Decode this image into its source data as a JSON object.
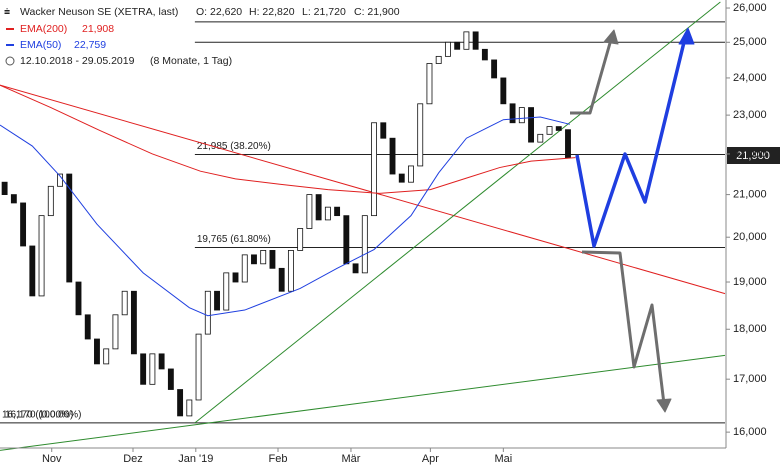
{
  "chart_data": {
    "type": "candlestick",
    "title": "Wacker Neuson SE (XETRA, last)",
    "ohlc_text": {
      "O": "O: 22,620",
      "H": "H: 22,820",
      "L": "L: 21,720",
      "C": "C: 21,900"
    },
    "period": "12.10.2018 - 29.05.2019",
    "period_note": "(8 Monate, 1 Tag)",
    "last_price_label": "21,900",
    "log_scale": true,
    "xlim": [
      -0.5,
      78
    ],
    "ylim": [
      15730,
      26240
    ],
    "xticks": [
      {
        "value": 5.1,
        "label": "Nov"
      },
      {
        "value": 13.9,
        "label": "Dez"
      },
      {
        "value": 20.7,
        "label": "Jan '19"
      },
      {
        "value": 29.6,
        "label": "Feb"
      },
      {
        "value": 37.5,
        "label": "Mär"
      },
      {
        "value": 46.1,
        "label": "Apr"
      },
      {
        "value": 54.0,
        "label": "Mai"
      }
    ],
    "yticks": [
      {
        "value": 16000,
        "label": "16,000"
      },
      {
        "value": 17000,
        "label": "17,000"
      },
      {
        "value": 18000,
        "label": "18,000"
      },
      {
        "value": 19000,
        "label": "19,000"
      },
      {
        "value": 20000,
        "label": "20,000"
      },
      {
        "value": 21000,
        "label": "21,000"
      },
      {
        "value": 22000,
        "label": "22,000"
      },
      {
        "value": 23000,
        "label": "23,000"
      },
      {
        "value": 24000,
        "label": "24,000"
      },
      {
        "value": 25000,
        "label": "25,000"
      },
      {
        "value": 26000,
        "label": "26,000"
      }
    ],
    "candles": {
      "open": [
        21300,
        21000,
        20800,
        19800,
        18700,
        20500,
        21200,
        21500,
        19000,
        18300,
        17800,
        17300,
        17600,
        18300,
        18800,
        17500,
        16900,
        17500,
        17200,
        16800,
        16300,
        16600,
        17900,
        18800,
        18400,
        19200,
        19000,
        19600,
        19400,
        19700,
        19300,
        18800,
        19700,
        20200,
        21000,
        20400,
        20700,
        20500,
        19400,
        19200,
        20500,
        22800,
        22400,
        21500,
        21300,
        21700,
        23300,
        24400,
        24600,
        25000,
        24800,
        25300,
        24800,
        24500,
        24000,
        23300,
        22800,
        23200,
        22300,
        22500,
        22700,
        22620
      ],
      "close": [
        21000,
        20800,
        19800,
        18700,
        20500,
        21200,
        21500,
        19000,
        18300,
        17800,
        17300,
        17600,
        18300,
        18800,
        17500,
        16900,
        17500,
        17200,
        16800,
        16300,
        16600,
        17900,
        18800,
        18400,
        19200,
        19000,
        19600,
        19400,
        19700,
        19300,
        18800,
        19700,
        20200,
        21000,
        20400,
        20700,
        20500,
        19400,
        19200,
        20500,
        22800,
        22400,
        21500,
        21300,
        21700,
        23300,
        24400,
        24600,
        25000,
        24800,
        25300,
        24800,
        24500,
        24000,
        23300,
        22800,
        23200,
        22300,
        22500,
        22700,
        22600,
        21900
      ]
    },
    "series": [
      {
        "name": "EMA(200)",
        "value_label": "21,908",
        "color": "#e02020",
        "x": [
          -0.5,
          5,
          10.3,
          16,
          21.2,
          25,
          29.8,
          35,
          40.6,
          46.1,
          50,
          53.6,
          57,
          61.8
        ],
        "values": [
          23800,
          23200,
          22600,
          22000,
          21570,
          21380,
          21250,
          21120,
          21030,
          21120,
          21400,
          21660,
          21820,
          21908
        ]
      },
      {
        "name": "EMA(50)",
        "value_label": "22,759",
        "color": "#2040e0",
        "x": [
          -0.5,
          3,
          6,
          10,
          15,
          20,
          22,
          26,
          32,
          36,
          40,
          44,
          47,
          50,
          54,
          58,
          61.2
        ],
        "values": [
          22740,
          22200,
          21450,
          20300,
          19200,
          18450,
          18280,
          18400,
          18860,
          19300,
          19720,
          20500,
          21530,
          22400,
          22880,
          22950,
          22759
        ]
      }
    ],
    "trendlines": [
      {
        "color": "#e02020",
        "x": [
          -0.5,
          78
        ],
        "values": [
          23805,
          18750
        ]
      },
      {
        "color": "#2e8b2e",
        "x": [
          20.6,
          77.5
        ],
        "values": [
          16170,
          26180
        ]
      },
      {
        "color": "#2e8b2e",
        "x": [
          -0.5,
          78
        ],
        "values": [
          15670,
          17470
        ]
      }
    ],
    "levels": [
      {
        "value": 25590,
        "from": 20.6,
        "labels": []
      },
      {
        "value": 25000,
        "from": 20.6,
        "labels": []
      },
      {
        "value": 21985,
        "from": 20.6,
        "labels": [
          "21,985 (38.20%)"
        ]
      },
      {
        "value": 19765,
        "from": 20.6,
        "labels": [
          "19,765 (61.80%)"
        ]
      },
      {
        "value": 16170,
        "from": -0.5,
        "labels": [
          "16,170 (0.00%)",
          "16,170 (100.00%)"
        ]
      }
    ]
  }
}
